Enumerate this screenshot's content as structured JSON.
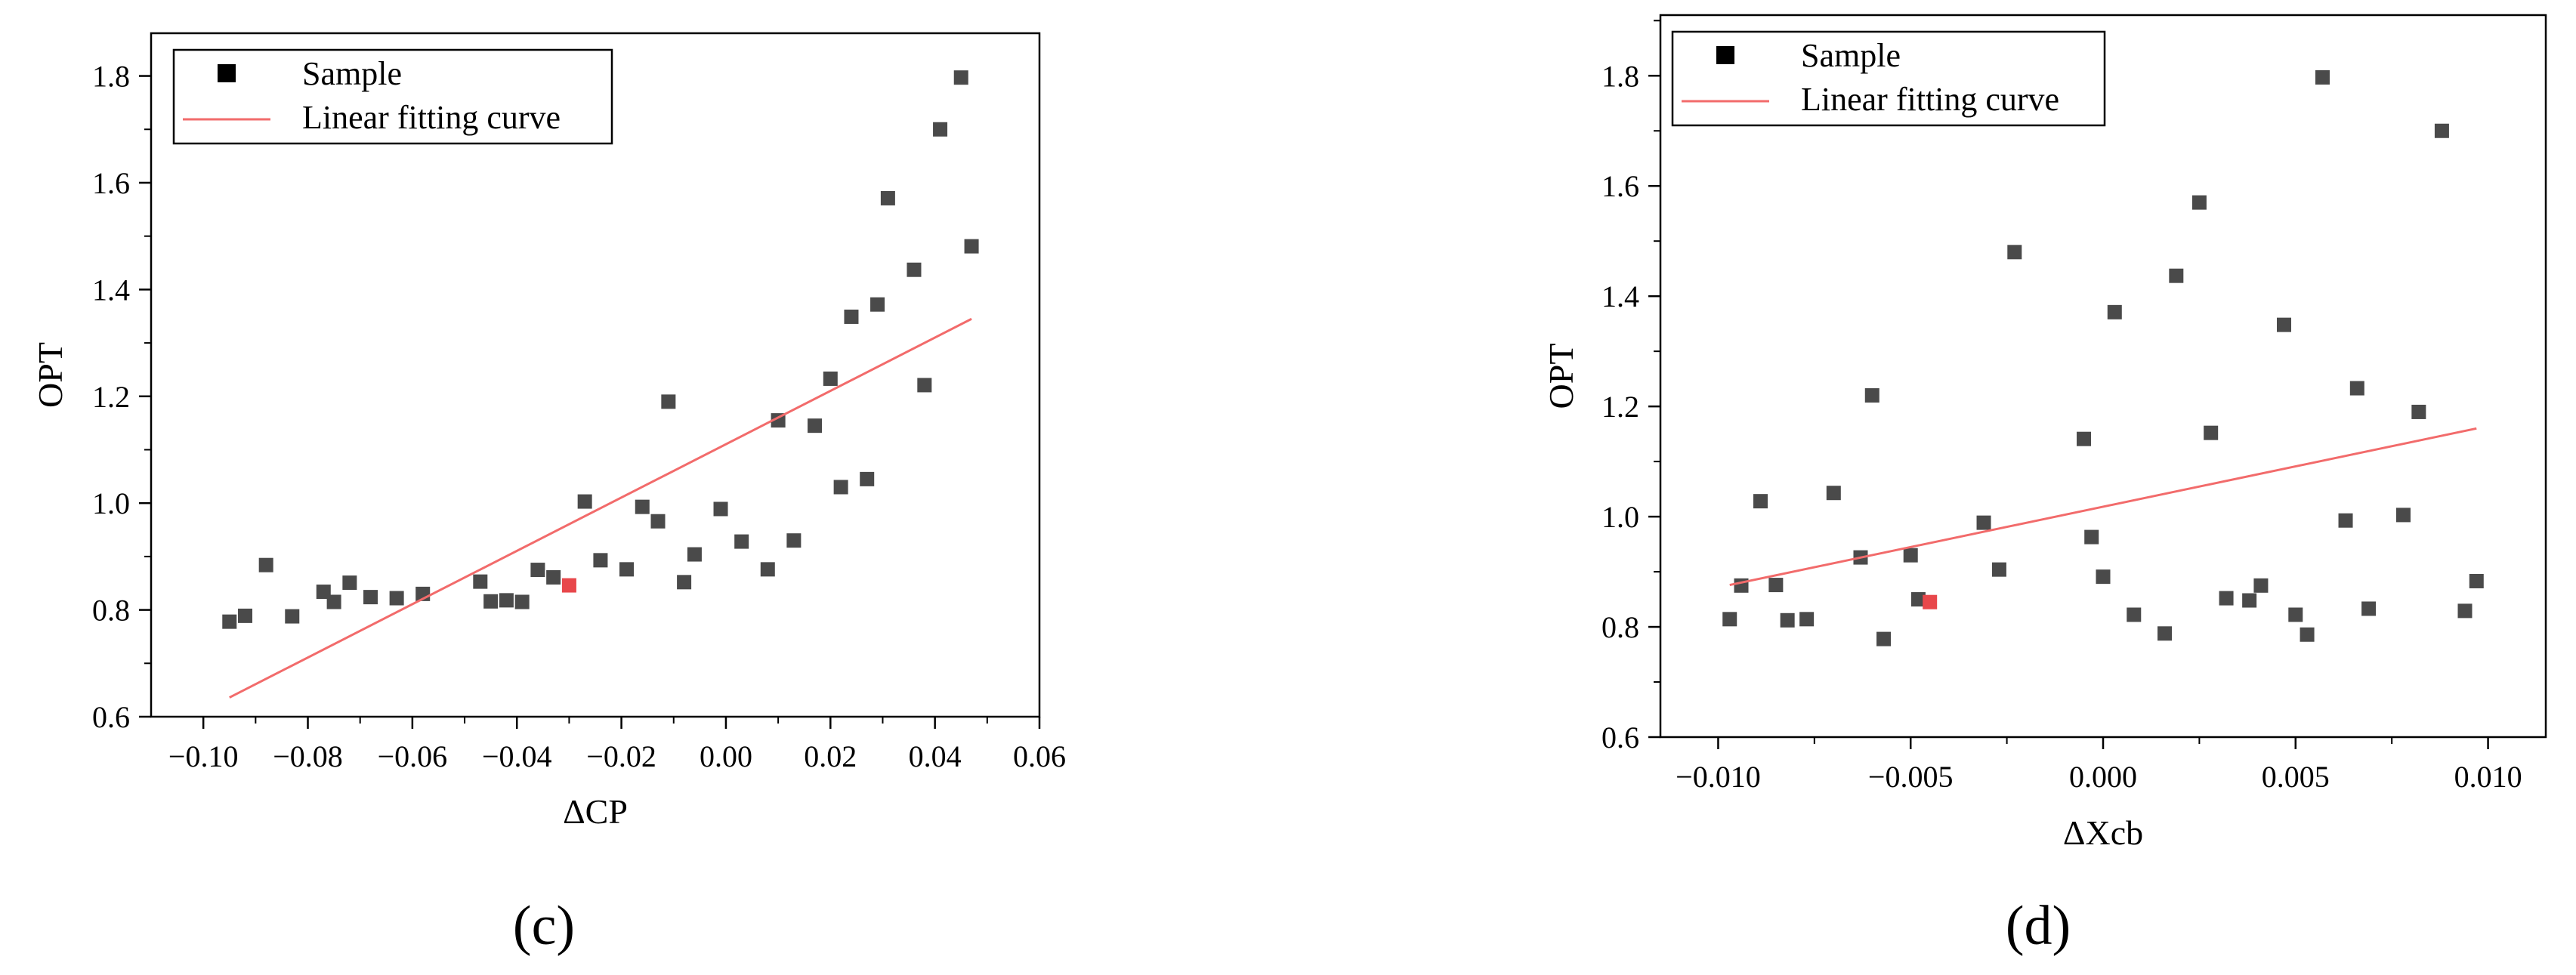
{
  "colors": {
    "sample": "#4a4a4a",
    "highlight": "#e8474b",
    "fit": "#f26b6b",
    "axis": "#000000"
  },
  "chart_data": [
    {
      "type": "scatter",
      "panel_label": "(c)",
      "xlabel": "ΔCP",
      "ylabel": "OPT",
      "xlim": [
        -0.11,
        0.06
      ],
      "ylim": [
        0.6,
        1.88
      ],
      "xticks": [
        -0.1,
        -0.08,
        -0.06,
        -0.04,
        -0.02,
        0.0,
        0.02,
        0.04,
        0.06
      ],
      "xtick_labels": [
        "−0.10",
        "−0.08",
        "−0.06",
        "−0.04",
        "−0.02",
        "0.00",
        "0.02",
        "0.04",
        "0.06"
      ],
      "yticks": [
        0.6,
        0.8,
        1.0,
        1.2,
        1.4,
        1.6,
        1.8
      ],
      "ytick_labels": [
        "0.6",
        "0.8",
        "1.0",
        "1.2",
        "1.4",
        "1.6",
        "1.8"
      ],
      "legend": {
        "position": "top-left",
        "entries": [
          "Sample",
          "Linear fitting curve"
        ]
      },
      "series": [
        {
          "name": "Sample",
          "kind": "scatter",
          "points": [
            [
              -0.095,
              0.778
            ],
            [
              -0.092,
              0.789
            ],
            [
              -0.088,
              0.884
            ],
            [
              -0.083,
              0.788
            ],
            [
              -0.077,
              0.834
            ],
            [
              -0.075,
              0.815
            ],
            [
              -0.072,
              0.851
            ],
            [
              -0.068,
              0.824
            ],
            [
              -0.063,
              0.822
            ],
            [
              -0.058,
              0.83
            ],
            [
              -0.047,
              0.853
            ],
            [
              -0.045,
              0.816
            ],
            [
              -0.042,
              0.818
            ],
            [
              -0.039,
              0.815
            ],
            [
              -0.036,
              0.875
            ],
            [
              -0.033,
              0.861
            ],
            [
              -0.027,
              1.003
            ],
            [
              -0.024,
              0.893
            ],
            [
              -0.019,
              0.876
            ],
            [
              -0.016,
              0.993
            ],
            [
              -0.013,
              0.966
            ],
            [
              -0.011,
              1.19
            ],
            [
              -0.008,
              0.852
            ],
            [
              -0.006,
              0.904
            ],
            [
              -0.001,
              0.989
            ],
            [
              0.003,
              0.928
            ],
            [
              0.008,
              0.876
            ],
            [
              0.01,
              1.155
            ],
            [
              0.013,
              0.93
            ],
            [
              0.017,
              1.145
            ],
            [
              0.02,
              1.233
            ],
            [
              0.022,
              1.03
            ],
            [
              0.024,
              1.349
            ],
            [
              0.027,
              1.045
            ],
            [
              0.029,
              1.372
            ],
            [
              0.031,
              1.571
            ],
            [
              0.036,
              1.437
            ],
            [
              0.038,
              1.221
            ],
            [
              0.041,
              1.7
            ],
            [
              0.045,
              1.797
            ],
            [
              0.047,
              1.481
            ]
          ]
        },
        {
          "name": "",
          "kind": "highlight",
          "points": [
            [
              -0.03,
              0.846
            ]
          ]
        },
        {
          "name": "Linear fitting curve",
          "kind": "line",
          "points": [
            [
              -0.095,
              0.636
            ],
            [
              0.047,
              1.345
            ]
          ]
        }
      ]
    },
    {
      "type": "scatter",
      "panel_label": "(d)",
      "xlabel": "ΔXcb",
      "ylabel": "OPT",
      "xlim": [
        -0.0115,
        0.0115
      ],
      "ylim": [
        0.6,
        1.91
      ],
      "xticks": [
        -0.01,
        -0.005,
        0.0,
        0.005,
        0.01
      ],
      "xtick_labels": [
        "−0.010",
        "−0.005",
        "0.000",
        "0.005",
        "0.010"
      ],
      "yticks": [
        0.6,
        0.8,
        1.0,
        1.2,
        1.4,
        1.6,
        1.8
      ],
      "ytick_labels": [
        "0.6",
        "0.8",
        "1.0",
        "1.2",
        "1.4",
        "1.6",
        "1.8"
      ],
      "legend": {
        "position": "top-left",
        "entries": [
          "Sample",
          "Linear fitting curve"
        ]
      },
      "series": [
        {
          "name": "Sample",
          "kind": "scatter",
          "points": [
            [
              -0.0097,
              0.814
            ],
            [
              -0.0094,
              0.875
            ],
            [
              -0.0089,
              1.028
            ],
            [
              -0.0085,
              0.876
            ],
            [
              -0.0082,
              0.812
            ],
            [
              -0.0077,
              0.814
            ],
            [
              -0.007,
              1.043
            ],
            [
              -0.0063,
              0.926
            ],
            [
              -0.006,
              1.22
            ],
            [
              -0.0057,
              0.778
            ],
            [
              -0.005,
              0.93
            ],
            [
              -0.0048,
              0.85
            ],
            [
              -0.0031,
              0.989
            ],
            [
              -0.0027,
              0.904
            ],
            [
              -0.0023,
              1.48
            ],
            [
              -0.0005,
              1.141
            ],
            [
              -0.0003,
              0.963
            ],
            [
              0.0,
              0.891
            ],
            [
              0.0003,
              1.371
            ],
            [
              0.0008,
              0.822
            ],
            [
              0.0016,
              0.788
            ],
            [
              0.0019,
              1.437
            ],
            [
              0.0025,
              1.57
            ],
            [
              0.0028,
              1.152
            ],
            [
              0.0032,
              0.852
            ],
            [
              0.0038,
              0.848
            ],
            [
              0.0041,
              0.875
            ],
            [
              0.0047,
              1.348
            ],
            [
              0.005,
              0.822
            ],
            [
              0.0053,
              0.786
            ],
            [
              0.0057,
              1.797
            ],
            [
              0.0063,
              0.993
            ],
            [
              0.0066,
              1.233
            ],
            [
              0.0069,
              0.833
            ],
            [
              0.0078,
              1.003
            ],
            [
              0.0082,
              1.19
            ],
            [
              0.0088,
              1.7
            ],
            [
              0.0094,
              0.829
            ],
            [
              0.0097,
              0.883
            ]
          ]
        },
        {
          "name": "",
          "kind": "highlight",
          "points": [
            [
              -0.0045,
              0.845
            ]
          ]
        },
        {
          "name": "Linear fitting curve",
          "kind": "line",
          "points": [
            [
              -0.0097,
              0.876
            ],
            [
              0.0097,
              1.16
            ]
          ]
        }
      ]
    }
  ]
}
